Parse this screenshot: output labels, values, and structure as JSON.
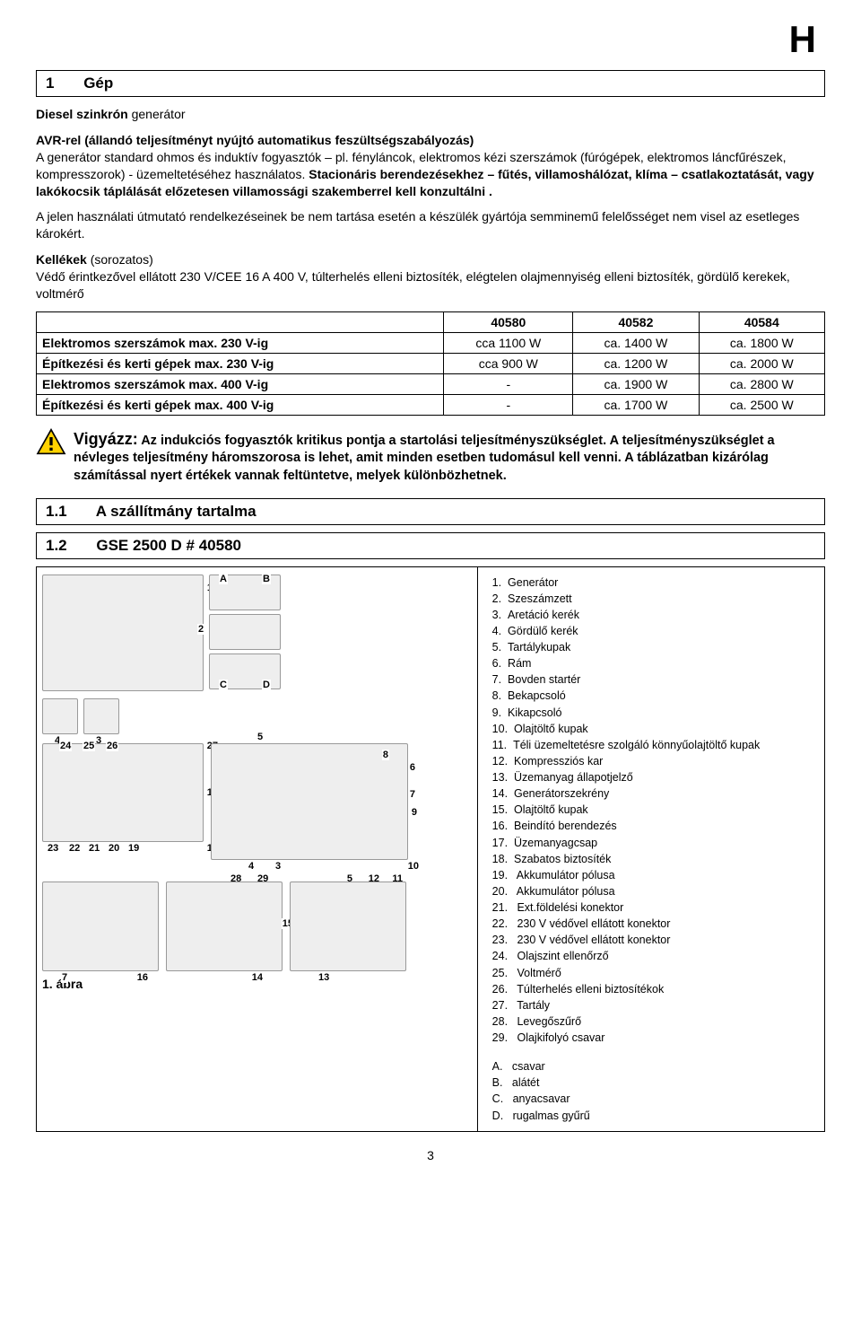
{
  "header_letter": "H",
  "section1": {
    "num": "1",
    "title": "Gép"
  },
  "intro": {
    "line1_a": "Diesel szinkrón",
    "line1_b": " generátor",
    "line2_a": "AVR-rel (állandó teljesítményt nyújtó automatikus feszültségszabályozás)",
    "line3": "A generátor standard ohmos és induktív fogyasztók – pl. fényláncok, elektromos kézi szerszámok (fúrógépek, elektromos láncfűrészek, kompresszorok) - üzemeltetéséhez használatos. ",
    "line3_bold": "Stacionáris berendezésekhez – fűtés, villamoshálózat, klíma – csatlakoztatását, vagy lakókocsik táplálását előzetesen villamossági szakemberrel kell konzultálni .",
    "line4": "A jelen használati útmutató rendelkezéseinek be nem tartása esetén a készülék gyártója semminemű felelősséget nem visel az esetleges károkért."
  },
  "kellekek": {
    "label_a": "Kellékek",
    "label_b": " (sorozatos)",
    "desc": "Védő érintkezővel ellátott 230 V/CEE 16 A 400 V, túlterhelés elleni biztosíték, elégtelen olajmennyiség elleni biztosíték, gördülő kerekek, voltmérő"
  },
  "table": {
    "headers": [
      "",
      "40580",
      "40582",
      "40584"
    ],
    "rows": [
      {
        "label": "Elektromos szerszámok max. 230 V-ig",
        "c1": "cca 1100 W",
        "c2": "ca. 1400 W",
        "c3": "ca. 1800 W"
      },
      {
        "label": "Építkezési és kerti gépek max. 230 V-ig",
        "c1": "cca 900 W",
        "c2": "ca. 1200 W",
        "c3": "ca. 2000 W"
      },
      {
        "label": "Elektromos szerszámok max. 400 V-ig",
        "c1": "-",
        "c2": "ca. 1900 W",
        "c3": "ca. 2800 W"
      },
      {
        "label": "Építkezési és kerti gépek max. 400 V-ig",
        "c1": "-",
        "c2": "ca. 1700 W",
        "c3": "ca. 2500 W"
      }
    ]
  },
  "warning": {
    "title": "Vigyázz:",
    "text": " Az indukciós fogyasztók kritikus pontja a startolási teljesítményszükséglet. A teljesítményszükséglet a névleges teljesítmény háromszorosa is lehet, amit minden esetben tudomásul kell venni. A táblázatban kizárólag számítással nyert értékek vannak feltüntetve, melyek különbözhetnek."
  },
  "section11": {
    "num": "1.1",
    "title": "A szállítmány tartalma"
  },
  "section12": {
    "num": "1.2",
    "title": "GSE 2500 D # 40580"
  },
  "legend": [
    "Generátor",
    "Szeszámzett",
    "Aretáció kerék",
    "Gördülő kerék",
    "Tartálykupak",
    "Rám",
    "Bovden startér",
    "Bekapcsoló",
    "Kikapcsoló",
    "Olajtöltő kupak",
    "Téli üzemeltetésre szolgáló könnyűolajtöltő kupak",
    "Kompressziós kar",
    "Üzemanyag állapotjelző",
    "Generátorszekrény",
    "Olajtöltő kupak",
    "Beindító berendezés",
    "Üzemanyagcsap",
    "Szabatos  biztosíték",
    " Akkumulátor pólusa",
    " Akkumulátor pólusa",
    " Ext.földelési konektor",
    " 230 V védővel ellátott konektor",
    " 230 V védővel ellátott konektor",
    " Olajszint ellenőrző",
    " Voltmérő",
    " Túlterhelés elleni biztosítékok",
    " Tartály",
    " Levegőszűrő",
    " Olajkifolyó csavar"
  ],
  "letter_legend": [
    {
      "k": "A.",
      "v": "csavar"
    },
    {
      "k": "B.",
      "v": "alátét"
    },
    {
      "k": "C.",
      "v": "anyacsavar"
    },
    {
      "k": "D.",
      "v": "rugalmas gyűrű"
    }
  ],
  "abra": "1. ábra",
  "page": "3",
  "diagram_callouts_top": [
    "1",
    "A",
    "B",
    "2",
    "C",
    "D",
    "4",
    "3"
  ],
  "diagram_callouts_mid": [
    "5",
    "24",
    "25",
    "26",
    "27",
    "6",
    "8",
    "18",
    "7",
    "9",
    "23",
    "22",
    "21",
    "20",
    "19",
    "17",
    "4",
    "3",
    "10",
    "28",
    "29",
    "5",
    "12",
    "11"
  ],
  "diagram_callouts_bot": [
    "7",
    "16",
    "15",
    "14",
    "13"
  ]
}
